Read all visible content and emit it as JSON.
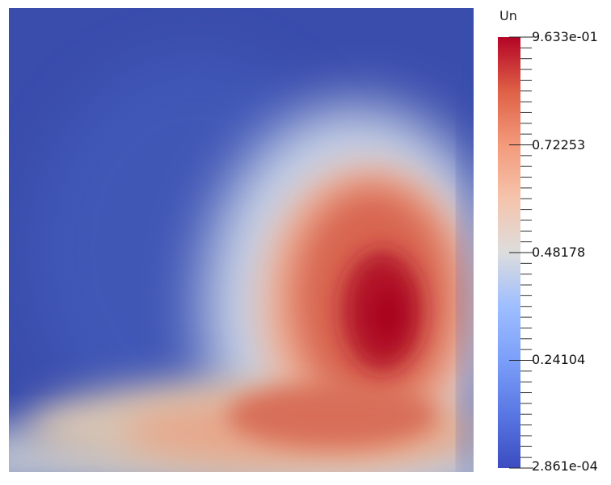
{
  "field": {
    "variable": "Un"
  },
  "colorbar": {
    "title": "Un",
    "max_label": "9.633e-01",
    "min_label": "2.861e-04",
    "tick_labels": [
      "0.72253",
      "0.48178",
      "0.24104"
    ],
    "tick_values": [
      0.72253,
      0.48178,
      0.24104
    ],
    "range": [
      0.0002861,
      0.9633
    ],
    "colormap": "cool-to-warm",
    "colors": {
      "low": "#3b4cc0",
      "mid": "#dddddd",
      "high": "#b40426"
    }
  }
}
